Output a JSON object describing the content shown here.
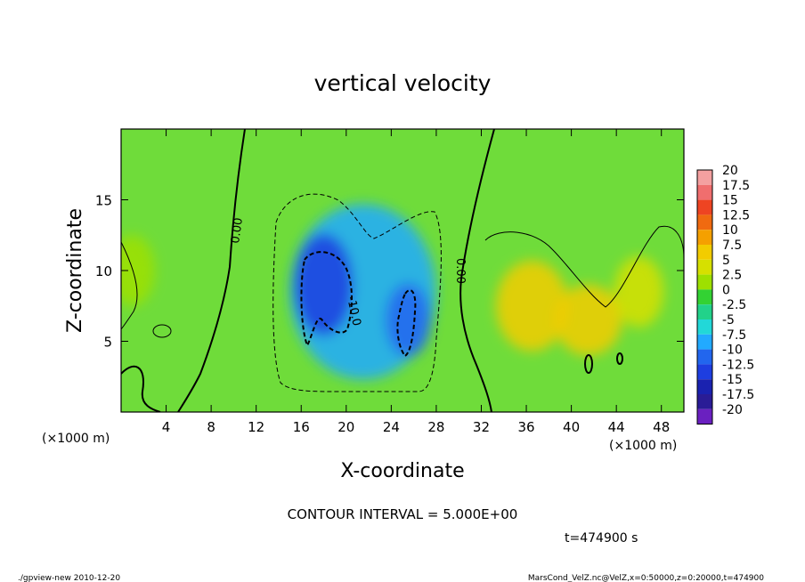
{
  "chart_data": {
    "type": "heatmap",
    "title": "vertical velocity",
    "xlabel": "X-coordinate",
    "ylabel": "Z-coordinate",
    "x_unit_left": "(×1000 m)",
    "x_unit_right": "(×1000 m)",
    "xlim": [
      0,
      50
    ],
    "ylim": [
      0,
      20
    ],
    "x_ticks": [
      "4",
      "8",
      "12",
      "16",
      "20",
      "24",
      "28",
      "32",
      "36",
      "40",
      "44",
      "48"
    ],
    "y_ticks": [
      "5",
      "10",
      "15"
    ],
    "contour_interval_text": "CONTOUR INTERVAL = 5.000E+00",
    "time_text": "t=474900 s",
    "contour_labels": [
      "0.00",
      "0.00",
      "-10.0"
    ],
    "colorbar": {
      "labels": [
        "20",
        "17.5",
        "15",
        "12.5",
        "10",
        "7.5",
        "5",
        "2.5",
        "0",
        "-2.5",
        "-5",
        "-7.5",
        "-10",
        "-12.5",
        "-15",
        "-17.5",
        "-20"
      ],
      "colors": [
        "#f4a0a0",
        "#f06e6e",
        "#ee4422",
        "#f06a10",
        "#f5a000",
        "#f2cc00",
        "#d6e000",
        "#9ee000",
        "#33d233",
        "#22d28a",
        "#22d8d8",
        "#22aaff",
        "#2266ee",
        "#1e3ee0",
        "#1a22b0",
        "#2a1c96",
        "#6a20c0"
      ]
    },
    "field_blobs": [
      {
        "x": 21.5,
        "z": 8.5,
        "rx": 6.5,
        "rz": 6.2,
        "value": -7.5
      },
      {
        "x": 18.0,
        "z": 9.0,
        "rx": 2.6,
        "rz": 3.6,
        "value": -12.5
      },
      {
        "x": 25.5,
        "z": 6.5,
        "rx": 2.0,
        "rz": 2.6,
        "value": -10
      },
      {
        "x": 36.5,
        "z": 7.5,
        "rx": 3.2,
        "rz": 3.2,
        "value": 7.5
      },
      {
        "x": 41.5,
        "z": 6.5,
        "rx": 3.0,
        "rz": 2.5,
        "value": 7.5
      },
      {
        "x": 46.0,
        "z": 8.5,
        "rx": 2.2,
        "rz": 2.5,
        "value": 5
      },
      {
        "x": 1.0,
        "z": 10.0,
        "rx": 2.0,
        "rz": 2.5,
        "value": 2.5
      }
    ],
    "grid": false,
    "legend": "right"
  },
  "footer": {
    "left": "./gpview-new   2010-12-20",
    "right": "MarsCond_VelZ.nc@VelZ,x=0:50000,z=0:20000,t=474900"
  }
}
